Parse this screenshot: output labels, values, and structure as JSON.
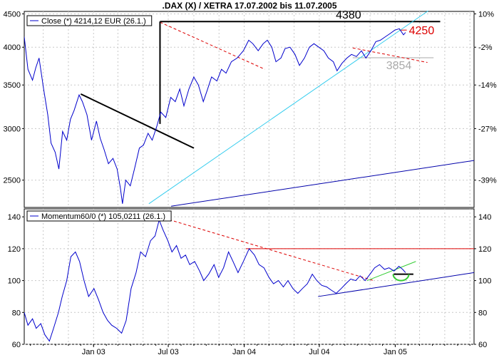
{
  "title": ".DAX (X) / XETRA 17.07.2002 bis 11.07.2005",
  "chart_data": [
    {
      "type": "line",
      "panel": "price",
      "legend": "Close (*) 4214,12 EUR (26.1.)",
      "ylim": [
        2270,
        4540
      ],
      "scale": "log",
      "y_ticks_left": [
        "4500",
        "4000",
        "3500",
        "3000",
        "2500"
      ],
      "y_ticks_right": [
        "10%",
        "-2%",
        "-14%",
        "-27%",
        "-39%"
      ],
      "x_tick_labels": [
        "Jan 03",
        "Jul 03",
        "Jan 04",
        "Jul 04",
        "Jan 05"
      ],
      "grid": true,
      "series": [
        {
          "name": "Close",
          "color": "#0000cc",
          "points": [
            [
              "2002-07-17",
              4150
            ],
            [
              "2002-07-26",
              3700
            ],
            [
              "2002-08-06",
              3560
            ],
            [
              "2002-08-14",
              3720
            ],
            [
              "2002-08-22",
              3850
            ],
            [
              "2002-09-02",
              3450
            ],
            [
              "2002-09-12",
              3150
            ],
            [
              "2002-09-20",
              2850
            ],
            [
              "2002-09-30",
              2760
            ],
            [
              "2002-10-09",
              2600
            ],
            [
              "2002-10-18",
              2970
            ],
            [
              "2002-10-28",
              2880
            ],
            [
              "2002-11-06",
              3100
            ],
            [
              "2002-11-15",
              3200
            ],
            [
              "2002-11-27",
              3380
            ],
            [
              "2002-12-05",
              3300
            ],
            [
              "2002-12-16",
              3150
            ],
            [
              "2002-12-27",
              2880
            ],
            [
              "2003-01-08",
              3080
            ],
            [
              "2003-01-17",
              2900
            ],
            [
              "2003-01-27",
              2780
            ],
            [
              "2003-02-06",
              2650
            ],
            [
              "2003-02-17",
              2700
            ],
            [
              "2003-02-27",
              2600
            ],
            [
              "2003-03-07",
              2430
            ],
            [
              "2003-03-12",
              2300
            ],
            [
              "2003-03-20",
              2500
            ],
            [
              "2003-03-31",
              2450
            ],
            [
              "2003-04-10",
              2600
            ],
            [
              "2003-04-22",
              2800
            ],
            [
              "2003-05-02",
              2830
            ],
            [
              "2003-05-13",
              2950
            ],
            [
              "2003-05-23",
              2880
            ],
            [
              "2003-06-03",
              3020
            ],
            [
              "2003-06-13",
              3180
            ],
            [
              "2003-06-25",
              3120
            ],
            [
              "2003-07-07",
              3350
            ],
            [
              "2003-07-18",
              3300
            ],
            [
              "2003-07-29",
              3450
            ],
            [
              "2003-08-08",
              3250
            ],
            [
              "2003-08-20",
              3450
            ],
            [
              "2003-09-01",
              3600
            ],
            [
              "2003-09-12",
              3500
            ],
            [
              "2003-09-24",
              3300
            ],
            [
              "2003-10-03",
              3430
            ],
            [
              "2003-10-14",
              3600
            ],
            [
              "2003-10-27",
              3550
            ],
            [
              "2003-11-07",
              3700
            ],
            [
              "2003-11-18",
              3650
            ],
            [
              "2003-12-01",
              3800
            ],
            [
              "2003-12-15",
              3850
            ],
            [
              "2003-12-30",
              3950
            ],
            [
              "2004-01-12",
              4100
            ],
            [
              "2004-01-22",
              4050
            ],
            [
              "2004-02-04",
              3950
            ],
            [
              "2004-02-16",
              4050
            ],
            [
              "2004-02-26",
              4100
            ],
            [
              "2004-03-08",
              4000
            ],
            [
              "2004-03-18",
              3800
            ],
            [
              "2004-03-30",
              3850
            ],
            [
              "2004-04-09",
              3980
            ],
            [
              "2004-04-21",
              4000
            ],
            [
              "2004-05-03",
              3900
            ],
            [
              "2004-05-14",
              3750
            ],
            [
              "2004-05-26",
              3850
            ],
            [
              "2004-06-07",
              4000
            ],
            [
              "2004-06-18",
              4050
            ],
            [
              "2004-06-30",
              4000
            ],
            [
              "2004-07-12",
              3950
            ],
            [
              "2004-07-23",
              3850
            ],
            [
              "2004-08-04",
              3800
            ],
            [
              "2004-08-13",
              3680
            ],
            [
              "2004-08-25",
              3780
            ],
            [
              "2004-09-06",
              3850
            ],
            [
              "2004-09-17",
              3900
            ],
            [
              "2004-09-29",
              3870
            ],
            [
              "2004-10-11",
              3950
            ],
            [
              "2004-10-22",
              3850
            ],
            [
              "2004-11-03",
              3950
            ],
            [
              "2004-11-15",
              4080
            ],
            [
              "2004-11-26",
              4100
            ],
            [
              "2004-12-08",
              4150
            ],
            [
              "2004-12-20",
              4200
            ],
            [
              "2004-12-31",
              4250
            ],
            [
              "2005-01-11",
              4270
            ],
            [
              "2005-01-21",
              4180
            ],
            [
              "2005-01-26",
              4214
            ]
          ]
        }
      ],
      "annotations": [
        {
          "type": "label",
          "text": "4380",
          "value": 4380,
          "color": "#000000"
        },
        {
          "type": "label",
          "text": "4250",
          "value": 4250,
          "color": "#dd0000"
        },
        {
          "type": "label",
          "text": "3854",
          "value": 3854,
          "color": "#aaaaaa"
        },
        {
          "type": "hline",
          "value": 4380,
          "from": "2003-06-11",
          "to": "2005-04-20",
          "color": "#000000"
        },
        {
          "type": "hline",
          "value": 4250,
          "from": "2005-01-11",
          "to": "2005-01-29",
          "color": "#dd0000"
        },
        {
          "type": "hline",
          "value": 3854,
          "from": "2004-09-20",
          "to": "2005-04-04",
          "color": "#aaaaaa"
        },
        {
          "type": "trend",
          "from": [
            "2002-12-01",
            3390
          ],
          "to": [
            "2003-09-01",
            2800
          ],
          "color": "#000000"
        },
        {
          "type": "trend",
          "from": [
            "2003-05-15",
            2300
          ],
          "to": [
            "2005-03-22",
            4550
          ],
          "color": "#33ccee"
        },
        {
          "type": "trend",
          "from": [
            "2003-07-08",
            2280
          ],
          "to": [
            "2005-07-11",
            2680
          ],
          "color": "#0000aa"
        },
        {
          "type": "trend",
          "from": [
            "2003-06-11",
            4370
          ],
          "to": [
            "2004-02-20",
            3700
          ],
          "color": "#dd0000",
          "dashed": true
        },
        {
          "type": "trend",
          "from": [
            "2004-09-20",
            3990
          ],
          "to": [
            "2005-03-20",
            3790
          ],
          "color": "#dd0000",
          "dashed": true
        },
        {
          "type": "vline",
          "date": "2003-06-11",
          "from": 3050,
          "to": 4380,
          "color": "#000000"
        }
      ]
    },
    {
      "type": "line",
      "panel": "momentum",
      "legend": "Momentum60/0 (*) 105,0211 (26.1.)",
      "ylim": [
        60,
        145
      ],
      "y_ticks": [
        60,
        80,
        100,
        120,
        140
      ],
      "x_tick_labels": [
        "Jan 03",
        "Jul 03",
        "Jan 04",
        "Jul 04",
        "Jan 05"
      ],
      "grid": true,
      "series": [
        {
          "name": "Momentum60/0",
          "color": "#0000cc",
          "points": [
            [
              "2002-07-17",
              80
            ],
            [
              "2002-07-26",
              72
            ],
            [
              "2002-08-06",
              76
            ],
            [
              "2002-08-15",
              70
            ],
            [
              "2002-08-26",
              73
            ],
            [
              "2002-09-05",
              66
            ],
            [
              "2002-09-16",
              62
            ],
            [
              "2002-09-26",
              70
            ],
            [
              "2002-10-08",
              80
            ],
            [
              "2002-10-17",
              90
            ],
            [
              "2002-10-28",
              100
            ],
            [
              "2002-11-07",
              115
            ],
            [
              "2002-11-18",
              118
            ],
            [
              "2002-11-28",
              112
            ],
            [
              "2002-12-09",
              100
            ],
            [
              "2002-12-20",
              90
            ],
            [
              "2003-01-02",
              95
            ],
            [
              "2003-01-13",
              88
            ],
            [
              "2003-01-24",
              80
            ],
            [
              "2003-02-04",
              75
            ],
            [
              "2003-02-14",
              72
            ],
            [
              "2003-02-26",
              70
            ],
            [
              "2003-03-10",
              67
            ],
            [
              "2003-03-21",
              75
            ],
            [
              "2003-04-02",
              95
            ],
            [
              "2003-04-14",
              105
            ],
            [
              "2003-04-25",
              118
            ],
            [
              "2003-05-07",
              115
            ],
            [
              "2003-05-19",
              125
            ],
            [
              "2003-05-30",
              128
            ],
            [
              "2003-06-09",
              138
            ],
            [
              "2003-06-18",
              132
            ],
            [
              "2003-06-30",
              125
            ],
            [
              "2003-07-10",
              118
            ],
            [
              "2003-07-21",
              122
            ],
            [
              "2003-08-01",
              114
            ],
            [
              "2003-08-12",
              116
            ],
            [
              "2003-08-22",
              110
            ],
            [
              "2003-09-03",
              112
            ],
            [
              "2003-09-15",
              106
            ],
            [
              "2003-09-25",
              100
            ],
            [
              "2003-10-07",
              104
            ],
            [
              "2003-10-20",
              110
            ],
            [
              "2003-10-31",
              102
            ],
            [
              "2003-11-12",
              108
            ],
            [
              "2003-11-24",
              118
            ],
            [
              "2003-12-05",
              112
            ],
            [
              "2003-12-17",
              105
            ],
            [
              "2003-12-30",
              112
            ],
            [
              "2004-01-13",
              120
            ],
            [
              "2004-01-26",
              116
            ],
            [
              "2004-02-06",
              110
            ],
            [
              "2004-02-18",
              108
            ],
            [
              "2004-03-01",
              102
            ],
            [
              "2004-03-12",
              98
            ],
            [
              "2004-03-24",
              100
            ],
            [
              "2004-04-05",
              96
            ],
            [
              "2004-04-16",
              100
            ],
            [
              "2004-04-28",
              95
            ],
            [
              "2004-05-10",
              92
            ],
            [
              "2004-05-21",
              95
            ],
            [
              "2004-06-02",
              98
            ],
            [
              "2004-06-14",
              104
            ],
            [
              "2004-06-25",
              100
            ],
            [
              "2004-07-07",
              97
            ],
            [
              "2004-07-19",
              96
            ],
            [
              "2004-07-30",
              94
            ],
            [
              "2004-08-11",
              92
            ],
            [
              "2004-08-23",
              95
            ],
            [
              "2004-09-03",
              98
            ],
            [
              "2004-09-15",
              101
            ],
            [
              "2004-09-27",
              100
            ],
            [
              "2004-10-08",
              103
            ],
            [
              "2004-10-20",
              100
            ],
            [
              "2004-11-01",
              104
            ],
            [
              "2004-11-12",
              108
            ],
            [
              "2004-11-24",
              110
            ],
            [
              "2004-12-06",
              107
            ],
            [
              "2004-12-17",
              108
            ],
            [
              "2004-12-29",
              106
            ],
            [
              "2005-01-10",
              109
            ],
            [
              "2005-01-19",
              107
            ],
            [
              "2005-01-26",
              105
            ]
          ]
        }
      ],
      "annotations": [
        {
          "type": "hline",
          "value": 120,
          "from": "2004-01-05",
          "to": "2005-07-11",
          "color": "#dd0000"
        },
        {
          "type": "trend",
          "from": [
            "2003-06-10",
            140
          ],
          "to": [
            "2004-11-10",
            100
          ],
          "color": "#dd0000",
          "dashed": true
        },
        {
          "type": "trend",
          "from": [
            "2004-06-28",
            90
          ],
          "to": [
            "2005-07-11",
            105
          ],
          "color": "#0000aa"
        },
        {
          "type": "trend",
          "from": [
            "2004-10-25",
            100
          ],
          "to": [
            "2005-02-20",
            112
          ],
          "color": "#33cc33"
        },
        {
          "type": "hline",
          "value": 104,
          "from": "2004-12-28",
          "to": "2005-02-14",
          "color": "#000000"
        },
        {
          "type": "arc",
          "date": "2005-01-15",
          "value": 104,
          "color": "#33cc33"
        }
      ]
    }
  ]
}
